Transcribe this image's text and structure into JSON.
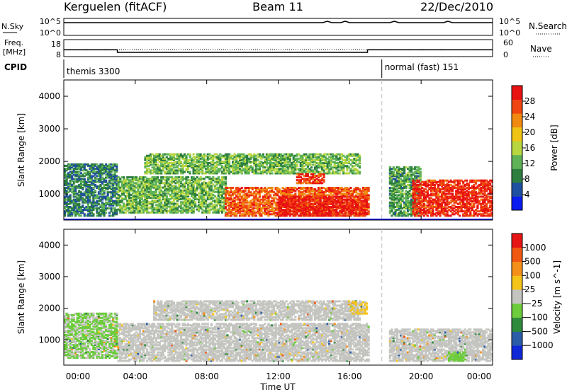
{
  "header": {
    "station": "Kerguelen (fitACF)",
    "beam": "Beam 11",
    "date": "22/Dec/2010"
  },
  "nsky_panel": {
    "left_label": "N.Sky",
    "right_label": "N.Search",
    "left_ticks": [
      "10^5",
      "10^0"
    ],
    "right_ticks": [
      "10^5",
      "10^0"
    ]
  },
  "freq_panel": {
    "left_label_line1": "Freq.",
    "left_label_line2": "[MHz]",
    "right_label": "Nave",
    "left_ticks": [
      "18",
      "8"
    ],
    "right_ticks": [
      "60",
      "0"
    ],
    "freq_steps": [
      {
        "from_hour": 0,
        "to_hour": 3,
        "value": 12
      },
      {
        "from_hour": 3,
        "to_hour": 17,
        "value": 10.5
      },
      {
        "from_hour": 17,
        "to_hour": 24,
        "value": 12
      }
    ]
  },
  "cpid_panel": {
    "label": "CPID",
    "programs": [
      {
        "name": "themis 3300",
        "start_hour": 0
      },
      {
        "name": "normal (fast) 151",
        "start_hour": 17.8
      }
    ]
  },
  "x_axis": {
    "label": "Time UT",
    "ticks": [
      "00:00",
      "04:00",
      "08:00",
      "12:00",
      "16:00",
      "20:00",
      "00:00"
    ],
    "range_hours": [
      0,
      24
    ]
  },
  "chart_data": [
    {
      "type": "heatmap",
      "title": "",
      "ylabel": "Slant Range [km]",
      "xlabel": "",
      "y_ticks": [
        1000,
        2000,
        3000,
        4000
      ],
      "ylim": [
        200,
        4500
      ],
      "xlim_hours": [
        0,
        24
      ],
      "colorbar": {
        "label": "Power [dB]",
        "ticks": [
          "4",
          "8",
          "12",
          "16",
          "20",
          "24",
          "28"
        ],
        "range": [
          0,
          30
        ],
        "colors": [
          "#0b1cf0",
          "#1f4fa0",
          "#2d7e3f",
          "#5fb356",
          "#b8d640",
          "#f0c414",
          "#f08a10",
          "#f04510",
          "#e81212"
        ]
      },
      "regions": [
        {
          "t0": 0.0,
          "t1": 3.0,
          "r0": 300,
          "r1": 1900,
          "value": 8
        },
        {
          "t0": 3.0,
          "t1": 9.0,
          "r0": 400,
          "r1": 1500,
          "value": 12
        },
        {
          "t0": 9.0,
          "t1": 17.0,
          "r0": 300,
          "r1": 1200,
          "value": 24
        },
        {
          "t0": 12.0,
          "t1": 17.0,
          "r0": 300,
          "r1": 900,
          "value": 28
        },
        {
          "t0": 4.5,
          "t1": 16.5,
          "r0": 1600,
          "r1": 2200,
          "value": 12
        },
        {
          "t0": 13.0,
          "t1": 14.5,
          "r0": 1300,
          "r1": 1600,
          "value": 26
        },
        {
          "t0": 18.2,
          "t1": 20.0,
          "r0": 300,
          "r1": 1800,
          "value": 10
        },
        {
          "t0": 19.5,
          "t1": 24.0,
          "r0": 300,
          "r1": 1400,
          "value": 27
        }
      ]
    },
    {
      "type": "heatmap",
      "title": "",
      "ylabel": "Slant Range [km]",
      "xlabel": "Time UT",
      "y_ticks": [
        1000,
        2000,
        3000,
        4000
      ],
      "ylim": [
        200,
        4500
      ],
      "xlim_hours": [
        0,
        24
      ],
      "colorbar": {
        "label": "Velocity [m s^-1]",
        "ticks": [
          "1000",
          "500",
          "100",
          "25",
          "−25",
          "−100",
          "−500",
          "−1000"
        ],
        "range": [
          -1200,
          1200
        ],
        "colors": [
          "#1028d8",
          "#2b5ca8",
          "#2e8a3c",
          "#6ccc3c",
          "#c4c4c0",
          "#f4c418",
          "#f4901a",
          "#f05812",
          "#e61414"
        ]
      },
      "regions": [
        {
          "t0": 3.0,
          "t1": 17.0,
          "r0": 300,
          "r1": 1500,
          "value": 0
        },
        {
          "t0": 5.0,
          "t1": 16.5,
          "r0": 1600,
          "r1": 2200,
          "value": 0
        },
        {
          "t0": 0.0,
          "t1": 3.0,
          "r0": 400,
          "r1": 1800,
          "value": -150
        },
        {
          "t0": 16.0,
          "t1": 17.0,
          "r0": 1800,
          "r1": 2200,
          "value": 150
        },
        {
          "t0": 18.2,
          "t1": 24.0,
          "r0": 300,
          "r1": 1300,
          "value": 0
        },
        {
          "t0": 21.5,
          "t1": 22.5,
          "r0": 300,
          "r1": 600,
          "value": -250
        }
      ]
    }
  ]
}
